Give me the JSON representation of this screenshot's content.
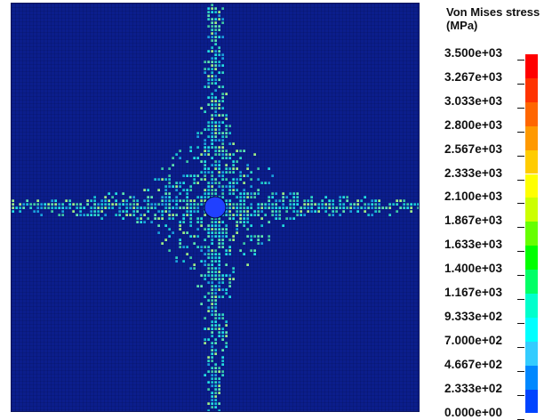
{
  "legend": {
    "title_line1": "Von Mises stress",
    "title_line2": "(MPa)",
    "labels": [
      "3.500e+03",
      "3.267e+03",
      "3.033e+03",
      "2.800e+03",
      "2.567e+03",
      "2.333e+03",
      "2.100e+03",
      "1.867e+03",
      "1.633e+03",
      "1.400e+03",
      "1.167e+03",
      "9.333e+02",
      "7.000e+02",
      "4.667e+02",
      "2.333e+02",
      "0.000e+00"
    ],
    "colors": [
      "#ff0000",
      "#ff3300",
      "#ff6600",
      "#ff9900",
      "#ffcc00",
      "#ffff00",
      "#ccff00",
      "#66ff00",
      "#00ff00",
      "#00ff66",
      "#00ffcc",
      "#00ffff",
      "#33ccff",
      "#0088ff",
      "#0044ff",
      "#0000ff"
    ],
    "max_value": 3500,
    "min_value": 0,
    "unit": "MPa"
  },
  "plot": {
    "background_color": "#0b1e8c",
    "hole_color": "#2040ff"
  }
}
